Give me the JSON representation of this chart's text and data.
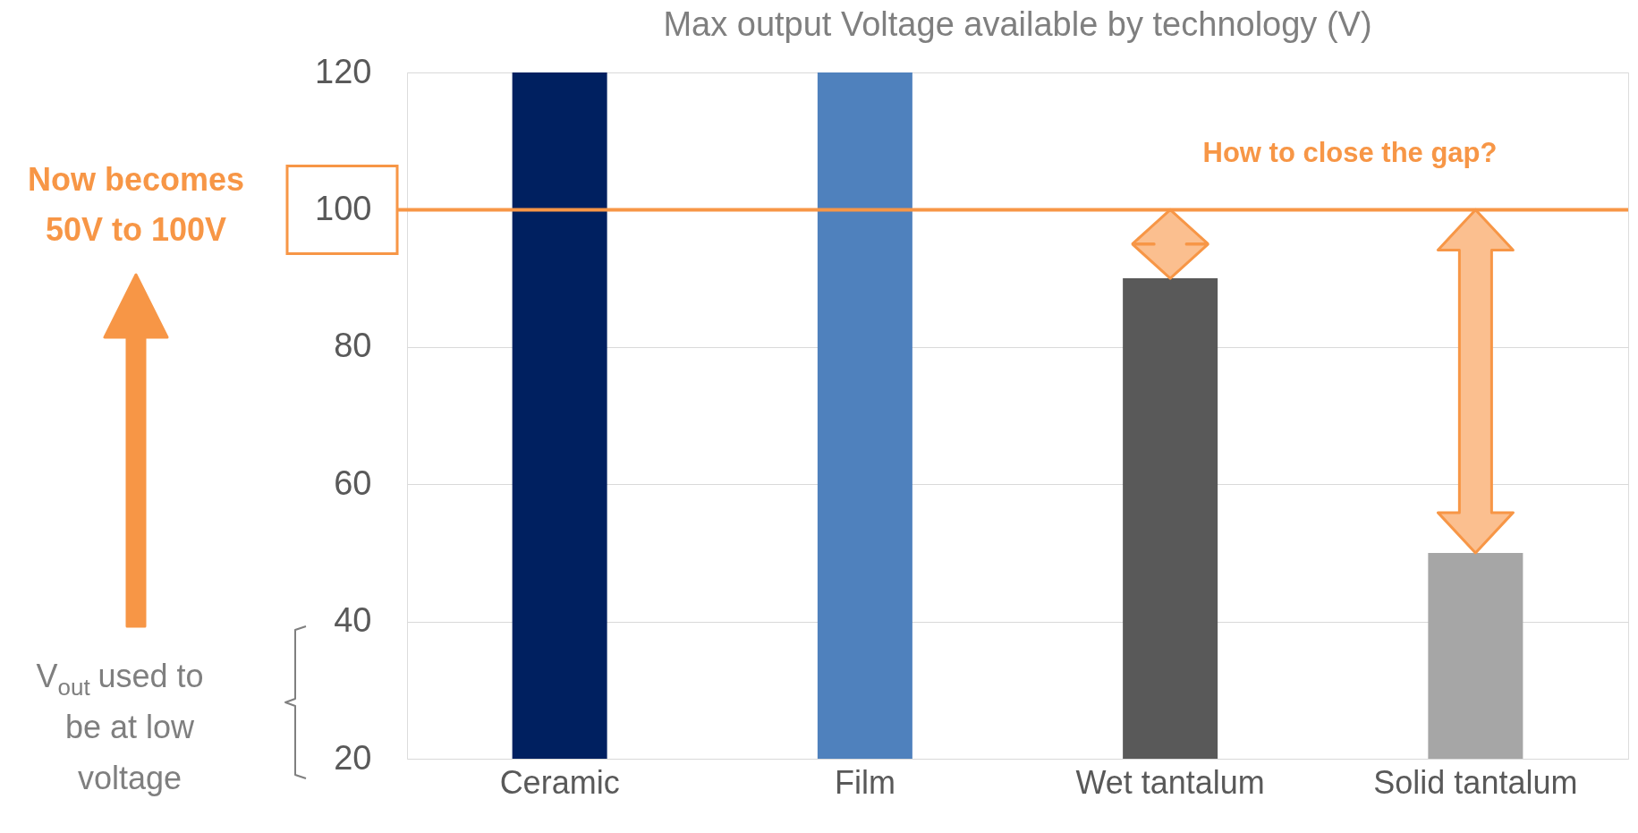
{
  "chart_data": {
    "type": "bar",
    "title": "Max output Voltage available by technology (V)",
    "categories": [
      "Ceramic",
      "Film",
      "Wet tantalum",
      "Solid tantalum"
    ],
    "values": [
      120,
      120,
      90,
      50
    ],
    "colors": [
      "#002060",
      "#4f81bd",
      "#595959",
      "#a6a6a6"
    ],
    "ylim": [
      20,
      120
    ],
    "yticks": [
      20,
      40,
      60,
      80,
      100,
      120
    ],
    "grid": "y",
    "ref_lines": [
      {
        "axis": "y",
        "value": 100,
        "color": "#f79646"
      }
    ],
    "annotations": [
      "How to close the gap?",
      "Now becomes 50V to 100V",
      "V$_{out}$ used to be at low voltage"
    ]
  }
}
